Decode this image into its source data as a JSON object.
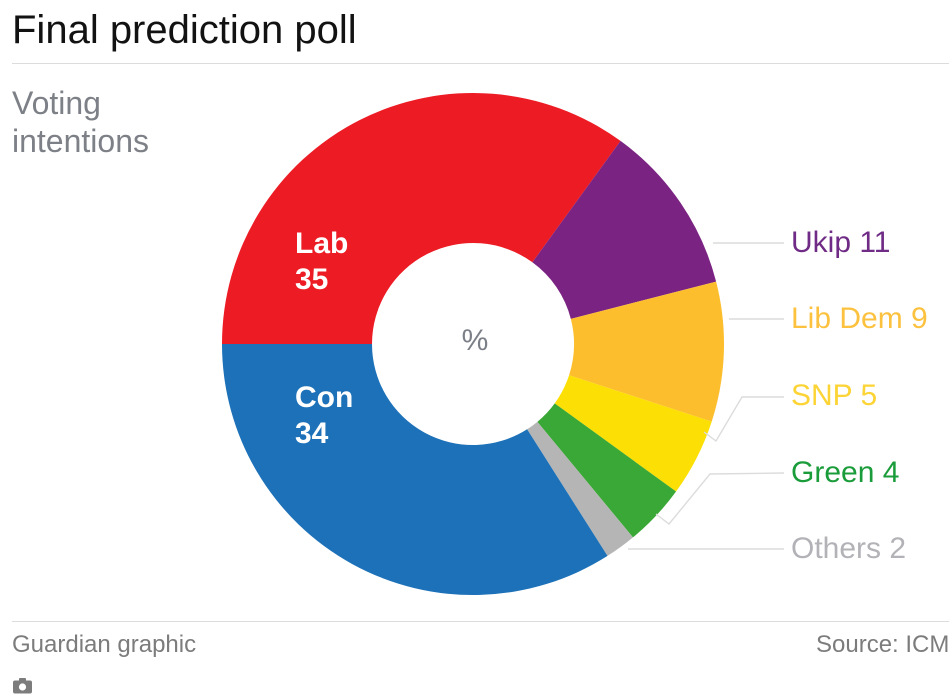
{
  "header": {
    "title": "Final prediction poll"
  },
  "subtitle": "Voting\nintentions",
  "chart_data": {
    "type": "pie",
    "variant": "donut",
    "title": "Final prediction poll",
    "subtitle": "Voting intentions",
    "unit": "%",
    "center_label": "%",
    "start_angle_deg": 270,
    "direction": "clockwise",
    "total": 100,
    "series": [
      {
        "name": "Lab",
        "value": 35,
        "color": "#ed1b24",
        "label_placement": "inside",
        "label_color": "#ffffff"
      },
      {
        "name": "Ukip",
        "value": 11,
        "color": "#7b2382",
        "label_placement": "outside",
        "label_color": "#6f2b85"
      },
      {
        "name": "Lib Dem",
        "value": 9,
        "color": "#fdbe2d",
        "label_placement": "outside",
        "label_color": "#fcc23f"
      },
      {
        "name": "SNP",
        "value": 5,
        "color": "#fcdf04",
        "label_placement": "outside",
        "label_color": "#fcd435"
      },
      {
        "name": "Green",
        "value": 4,
        "color": "#3aa836",
        "label_placement": "outside",
        "label_color": "#1b9c3b"
      },
      {
        "name": "Others",
        "value": 2,
        "color": "#b5b5b5",
        "label_placement": "outside",
        "label_color": "#b2b2b7"
      },
      {
        "name": "Con",
        "value": 34,
        "color": "#1c71b8",
        "label_placement": "inside",
        "label_color": "#ffffff"
      }
    ],
    "legend_position": "right-call-outs",
    "leader_line_color": "#dcdcdc"
  },
  "footer": {
    "credit": "Guardian graphic",
    "source": "Source: ICM"
  },
  "icons": {
    "camera": "camera-icon"
  }
}
